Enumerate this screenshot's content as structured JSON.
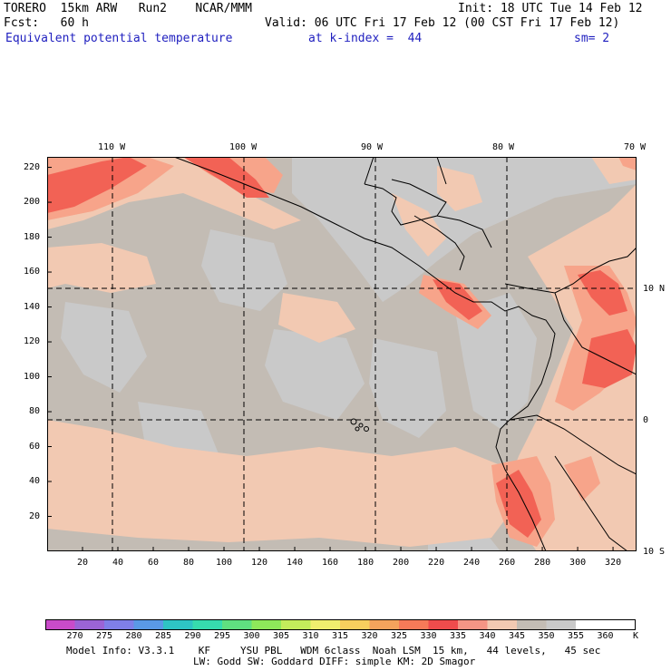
{
  "header": {
    "model": "TORERO  15km ARW   Run2    NCAR/MMM",
    "init": "Init: 18 UTC Tue 14 Feb 12",
    "fcst": "Fcst:   60 h",
    "valid": "Valid: 06 UTC Fri 17 Feb 12 (00 CST Fri 17 Feb 12)",
    "field": "Equivalent potential temperature",
    "kindex": "at k-index =  44",
    "sm": "sm= 2"
  },
  "map": {
    "lon_labels": [
      "110 W",
      "100 W",
      "90 W",
      "80 W",
      "70 W"
    ],
    "lat_labels": [
      "10 N",
      "0",
      "10 S"
    ],
    "x_ticks": [
      "20",
      "40",
      "60",
      "80",
      "100",
      "120",
      "140",
      "160",
      "180",
      "200",
      "220",
      "240",
      "260",
      "280",
      "300",
      "320"
    ],
    "y_ticks": [
      "20",
      "40",
      "60",
      "80",
      "100",
      "120",
      "140",
      "160",
      "180",
      "200",
      "220"
    ],
    "colors": {
      "background": "#c3bcb4",
      "cool": "#c9c9c9",
      "warm": "#f2c9b2",
      "warmer": "#f7a48a",
      "hot": "#f26255",
      "coast": "#000000"
    }
  },
  "colorbar": {
    "labels": [
      "270",
      "275",
      "280",
      "285",
      "290",
      "295",
      "300",
      "305",
      "310",
      "315",
      "320",
      "325",
      "330",
      "335",
      "340",
      "345",
      "350",
      "355",
      "360"
    ],
    "unit": "K",
    "colors": [
      "#c94bc9",
      "#9b64d6",
      "#7f7fe8",
      "#5a99e6",
      "#2ec4c4",
      "#36dcae",
      "#5fe080",
      "#8ee85a",
      "#c3ec5b",
      "#f0ee6e",
      "#f8cf5e",
      "#f5a35c",
      "#f67a58",
      "#ef4c4c",
      "#f59585",
      "#f2c9b2",
      "#c3bcb4",
      "#c9c9c9",
      "#ffffff",
      "#ffffff"
    ]
  },
  "footer": {
    "line1": "Model Info: V3.3.1    KF     YSU PBL   WDM 6class  Noah LSM  15 km,   44 levels,   45 sec",
    "line2": "LW: Godd SW: Goddard DIFF: simple KM: 2D Smagor"
  }
}
